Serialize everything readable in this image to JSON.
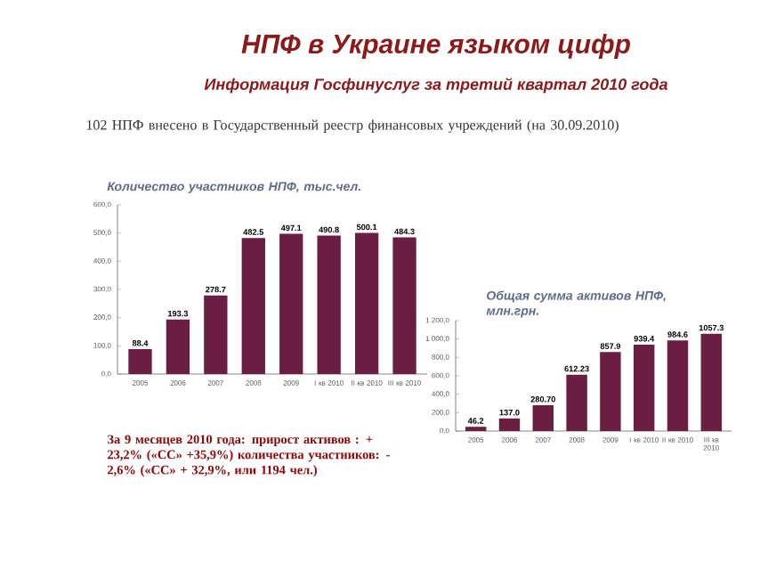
{
  "chart_data": [
    {
      "type": "bar",
      "title": "НПФ в Украине языком цифр",
      "subtitle": "Информация Госфинуслуг за третий квартал 2010 года",
      "annotations": [
        "102 НПФ внесено в Государственный реестр финансовых учреждений (на 30.09.2010)",
        "Количество участников НПФ, тыс.чел.",
        "За 9 месяцев 2010 года: прирост активов : + 23,2% («СС» +35,9%) количества участников: - 2,6% («СС» + 32,9%, или 1194 чел.)"
      ],
      "categories": [
        "2005",
        "2006",
        "2007",
        "2008",
        "2009",
        "I кв 2010",
        "II кв 2010",
        "III кв 2010"
      ],
      "values": [
        88.4,
        193.3,
        278.7,
        482.5,
        497.1,
        490.8,
        500.1,
        484.3
      ],
      "value_labels": [
        "88.4",
        "193.3",
        "278.7",
        "482.5",
        "497.1",
        "490.8",
        "500.1",
        "484.3"
      ],
      "color": "#6b1d42",
      "ylim": [
        0,
        600
      ],
      "yticks": [
        {
          "value": 0,
          "label": "0,0"
        },
        {
          "value": 100,
          "label": "100,0"
        },
        {
          "value": 200,
          "label": "200,0"
        },
        {
          "value": 300,
          "label": "300,0"
        },
        {
          "value": 400,
          "label": "400,0"
        },
        {
          "value": 500,
          "label": "500,0"
        },
        {
          "value": 600,
          "label": "600,0"
        }
      ]
    },
    {
      "type": "bar",
      "title": "Общая сумма активов НПФ, млн.грн.",
      "categories": [
        "2005",
        "2006",
        "2007",
        "2008",
        "2009",
        "I кв 2010",
        "II кв 2010",
        "III кв 2010"
      ],
      "values": [
        46.2,
        137.0,
        280.7,
        612.23,
        857.9,
        939.4,
        984.6,
        1057.3
      ],
      "value_labels": [
        "46.2",
        "137.0",
        "280.70",
        "612.23",
        "857.9",
        "939.4",
        "984.6",
        "1057.3"
      ],
      "color": "#6b1d42",
      "ylim": [
        0,
        1200
      ],
      "yticks": [
        {
          "value": 0,
          "label": "0,0"
        },
        {
          "value": 200,
          "label": "200,0"
        },
        {
          "value": 400,
          "label": "400,0"
        },
        {
          "value": 600,
          "label": "600,0"
        },
        {
          "value": 800,
          "label": "800,0"
        },
        {
          "value": 1000,
          "label": "1 000,0"
        },
        {
          "value": 1200,
          "label": "1 200,0"
        }
      ]
    }
  ]
}
